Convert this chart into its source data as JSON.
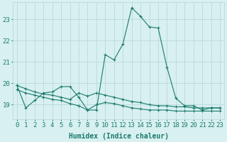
{
  "x": [
    0,
    1,
    2,
    3,
    4,
    5,
    6,
    7,
    8,
    9,
    10,
    11,
    12,
    13,
    14,
    15,
    16,
    17,
    18,
    19,
    20,
    21,
    22,
    23
  ],
  "line1": [
    19.9,
    18.85,
    19.2,
    19.55,
    19.6,
    19.85,
    19.85,
    19.35,
    18.75,
    18.75,
    21.35,
    21.1,
    21.85,
    23.55,
    23.15,
    22.65,
    22.6,
    20.75,
    19.3,
    18.95,
    18.95,
    18.75,
    18.85,
    18.85
  ],
  "line2": [
    19.9,
    19.75,
    19.6,
    19.5,
    19.45,
    19.35,
    19.25,
    19.55,
    19.4,
    19.55,
    19.45,
    19.35,
    19.25,
    19.15,
    19.1,
    19.0,
    18.95,
    18.95,
    18.9,
    18.9,
    18.85,
    18.85,
    18.85,
    18.85
  ],
  "line3": [
    19.7,
    19.55,
    19.45,
    19.35,
    19.25,
    19.2,
    19.05,
    18.95,
    18.75,
    19.0,
    19.1,
    19.05,
    18.95,
    18.85,
    18.8,
    18.75,
    18.75,
    18.75,
    18.7,
    18.7,
    18.7,
    18.7,
    18.7,
    18.7
  ],
  "line_color": "#1a7a6a",
  "bg_color": "#d8f0f0",
  "grid_color": "#b8dada",
  "xlabel": "Humidex (Indice chaleur)",
  "ylabel_ticks": [
    19,
    20,
    21,
    22,
    23
  ],
  "ylim": [
    18.3,
    23.8
  ],
  "xlim": [
    -0.5,
    23.5
  ],
  "axis_label_fontsize": 7,
  "tick_fontsize": 6.5
}
